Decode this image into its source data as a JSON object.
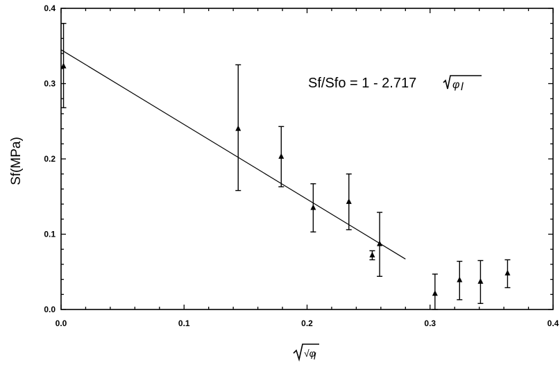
{
  "chart_data": {
    "type": "scatter",
    "title": "",
    "xlabel": "√φ",
    "xlabel_subscript": "l",
    "ylabel": "Sf(MPa)",
    "xlim": [
      0.0,
      0.4
    ],
    "ylim": [
      0.0,
      0.4
    ],
    "x_ticks": [
      "0.0",
      "0.1",
      "0.2",
      "0.3",
      "0.4"
    ],
    "y_ticks": [
      "0.0",
      "0.1",
      "0.2",
      "0.3",
      "0.4"
    ],
    "grid": false,
    "legend": "none",
    "series": [
      {
        "marker": "triangle",
        "points": [
          {
            "x": 0.002,
            "y": 0.323,
            "yerr_low": 0.268,
            "yerr_high": 0.38
          },
          {
            "x": 0.144,
            "y": 0.24,
            "yerr_low": 0.158,
            "yerr_high": 0.325
          },
          {
            "x": 0.179,
            "y": 0.203,
            "yerr_low": 0.163,
            "yerr_high": 0.243
          },
          {
            "x": 0.205,
            "y": 0.135,
            "yerr_low": 0.103,
            "yerr_high": 0.167
          },
          {
            "x": 0.234,
            "y": 0.143,
            "yerr_low": 0.106,
            "yerr_high": 0.18
          },
          {
            "x": 0.253,
            "y": 0.072,
            "yerr_low": 0.066,
            "yerr_high": 0.078
          },
          {
            "x": 0.259,
            "y": 0.087,
            "yerr_low": 0.044,
            "yerr_high": 0.129
          },
          {
            "x": 0.304,
            "y": 0.021,
            "yerr_low": 0.0,
            "yerr_high": 0.047
          },
          {
            "x": 0.324,
            "y": 0.039,
            "yerr_low": 0.013,
            "yerr_high": 0.064
          },
          {
            "x": 0.341,
            "y": 0.037,
            "yerr_low": 0.008,
            "yerr_high": 0.065
          },
          {
            "x": 0.363,
            "y": 0.048,
            "yerr_low": 0.029,
            "yerr_high": 0.066
          }
        ]
      }
    ],
    "fit_line": {
      "x": [
        0.0,
        0.28
      ],
      "y": [
        0.345,
        0.067
      ]
    },
    "annotation": {
      "prefix": "Sf/Sfo = 1 - 2.717",
      "radicand": "φ",
      "radicand_subscript": "l"
    }
  }
}
